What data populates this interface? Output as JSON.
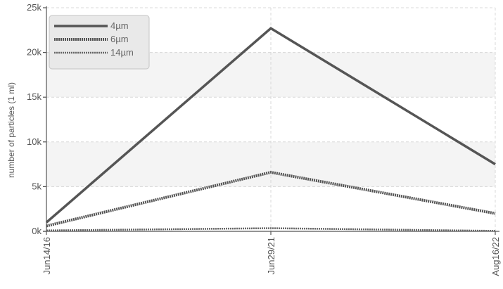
{
  "chart_data": {
    "type": "line",
    "title": "",
    "xlabel": "",
    "ylabel": "number of particles (1 ml)",
    "x": [
      "Jun14/16",
      "Jun29/21",
      "Aug16/22"
    ],
    "ylim": [
      0,
      25000
    ],
    "y_ticks": [
      0,
      5000,
      10000,
      15000,
      20000,
      25000
    ],
    "y_tick_labels": [
      "0k",
      "5k",
      "10k",
      "15k",
      "20k",
      "25k"
    ],
    "grid": true,
    "legend_position": "top-left",
    "series": [
      {
        "name": "4µm",
        "values": [
          1000,
          22700,
          7500
        ],
        "color": "#555555",
        "style": "solid"
      },
      {
        "name": "6µm",
        "values": [
          600,
          6600,
          2000
        ],
        "color": "#555555",
        "style": "dotted-thick"
      },
      {
        "name": "14µm",
        "values": [
          100,
          350,
          50
        ],
        "color": "#666666",
        "style": "dotted-thin"
      }
    ]
  }
}
